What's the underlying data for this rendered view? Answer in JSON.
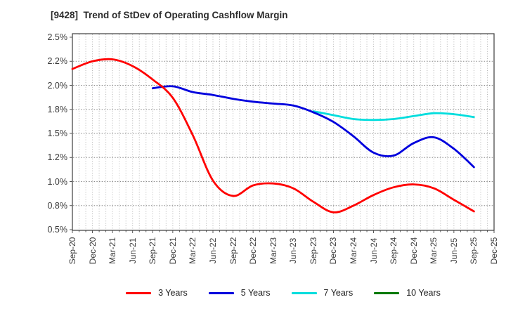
{
  "title": "[9428]  Trend of StDev of Operating Cashflow Margin",
  "chart_data": {
    "type": "line",
    "title": "[9428]  Trend of StDev of Operating Cashflow Margin",
    "x_tick_labels": [
      "Sep-20",
      "Dec-20",
      "Mar-21",
      "Jun-21",
      "Sep-21",
      "Dec-21",
      "Mar-22",
      "Jun-22",
      "Sep-22",
      "Dec-22",
      "Mar-23",
      "Jun-23",
      "Sep-23",
      "Dec-23",
      "Mar-24",
      "Jun-24",
      "Sep-24",
      "Dec-24",
      "Mar-25",
      "Jun-25",
      "Sep-25",
      "Dec-25"
    ],
    "y_axis": {
      "min": 0.5,
      "max": 2.5,
      "unit": "%",
      "tick_values": [
        2.5,
        2.25,
        2.0,
        1.75,
        1.5,
        1.25,
        1.0,
        0.75,
        0.5
      ],
      "tick_labels": [
        "2.5%",
        "2.2%",
        "2.0%",
        "1.8%",
        "1.5%",
        "1.2%",
        "1.0%",
        "0.8%",
        "0.5%"
      ],
      "gridlines": "dotted",
      "minor_x_grid": "monthly"
    },
    "legend_position": "bottom",
    "series": [
      {
        "name": "3 Years",
        "color": "#ff0000",
        "start_category": "Sep-20",
        "start_index": 0,
        "values": [
          2.17,
          2.25,
          2.27,
          2.2,
          2.06,
          1.87,
          1.48,
          1.01,
          0.85,
          0.96,
          0.98,
          0.93,
          0.79,
          0.68,
          0.75,
          0.86,
          0.94,
          0.97,
          0.93,
          0.81,
          0.69
        ]
      },
      {
        "name": "5 Years",
        "color": "#0000dd",
        "start_category": "Sep-21",
        "start_index": 4,
        "values": [
          1.97,
          1.99,
          1.93,
          1.9,
          1.86,
          1.83,
          1.81,
          1.79,
          1.72,
          1.62,
          1.47,
          1.3,
          1.27,
          1.4,
          1.46,
          1.34,
          1.15
        ]
      },
      {
        "name": "7 Years",
        "color": "#00dddd",
        "start_category": "Sep-23",
        "start_index": 12,
        "values": [
          1.73,
          1.69,
          1.65,
          1.64,
          1.65,
          1.68,
          1.71,
          1.7,
          1.67
        ]
      },
      {
        "name": "10 Years",
        "color": "#007700",
        "start_category": null,
        "start_index": null,
        "values": []
      }
    ]
  }
}
